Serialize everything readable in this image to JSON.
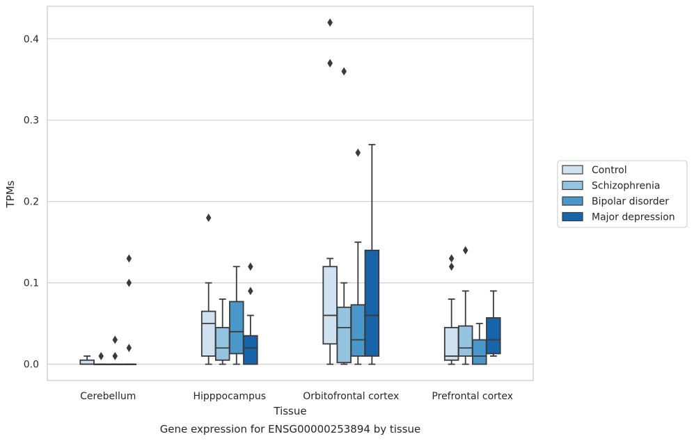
{
  "chart_data": {
    "type": "box",
    "xlabel": "Tissue",
    "ylabel": "TPMs",
    "caption": "Gene expression for ENSG00000253894 by tissue",
    "ylim": [
      -0.02,
      0.44
    ],
    "yticks": [
      0.0,
      0.1,
      0.2,
      0.3,
      0.4
    ],
    "ytick_labels": [
      "0.0",
      "0.1",
      "0.2",
      "0.3",
      "0.4"
    ],
    "grid": "horizontal",
    "legend_placement": "outside-right",
    "categories": [
      "Cerebellum",
      "Hipppocampus",
      "Orbitofrontal cortex",
      "Prefrontal cortex"
    ],
    "series": [
      {
        "name": "Control",
        "color": "#d0e1f2",
        "boxes": [
          {
            "whislo": 0.0,
            "q1": 0.0,
            "med": 0.0,
            "q3": 0.005,
            "whishi": 0.01,
            "fliers": []
          },
          {
            "whislo": 0.0,
            "q1": 0.01,
            "med": 0.05,
            "q3": 0.065,
            "whishi": 0.1,
            "fliers": [
              0.18
            ]
          },
          {
            "whislo": 0.0,
            "q1": 0.025,
            "med": 0.06,
            "q3": 0.12,
            "whishi": 0.13,
            "fliers": [
              0.37,
              0.37,
              0.42
            ]
          },
          {
            "whislo": 0.0,
            "q1": 0.005,
            "med": 0.01,
            "q3": 0.045,
            "whishi": 0.08,
            "fliers": [
              0.12,
              0.13
            ]
          }
        ]
      },
      {
        "name": "Schizophrenia",
        "color": "#94c4df",
        "boxes": [
          {
            "whislo": 0.0,
            "q1": 0.0,
            "med": 0.0,
            "q3": 0.0,
            "whishi": 0.0,
            "fliers": [
              0.01
            ]
          },
          {
            "whislo": 0.0,
            "q1": 0.005,
            "med": 0.02,
            "q3": 0.045,
            "whishi": 0.08,
            "fliers": []
          },
          {
            "whislo": 0.0,
            "q1": 0.002,
            "med": 0.045,
            "q3": 0.07,
            "whishi": 0.1,
            "fliers": [
              0.36
            ]
          },
          {
            "whislo": 0.0,
            "q1": 0.01,
            "med": 0.02,
            "q3": 0.047,
            "whishi": 0.09,
            "fliers": [
              0.14
            ]
          }
        ]
      },
      {
        "name": "Bipolar disorder",
        "color": "#4a98c9",
        "boxes": [
          {
            "whislo": 0.0,
            "q1": 0.0,
            "med": 0.0,
            "q3": 0.0,
            "whishi": 0.0,
            "fliers": [
              0.01,
              0.03
            ]
          },
          {
            "whislo": 0.0,
            "q1": 0.013,
            "med": 0.04,
            "q3": 0.077,
            "whishi": 0.12,
            "fliers": []
          },
          {
            "whislo": 0.0,
            "q1": 0.01,
            "med": 0.03,
            "q3": 0.073,
            "whishi": 0.15,
            "fliers": [
              0.26
            ]
          },
          {
            "whislo": 0.0,
            "q1": 0.0,
            "med": 0.01,
            "q3": 0.03,
            "whishi": 0.05,
            "fliers": []
          }
        ]
      },
      {
        "name": "Major depression",
        "color": "#1764ab",
        "boxes": [
          {
            "whislo": 0.0,
            "q1": 0.0,
            "med": 0.0,
            "q3": 0.0,
            "whishi": 0.0,
            "fliers": [
              0.02,
              0.1,
              0.13
            ]
          },
          {
            "whislo": 0.0,
            "q1": 0.0,
            "med": 0.02,
            "q3": 0.035,
            "whishi": 0.06,
            "fliers": [
              0.09,
              0.12
            ]
          },
          {
            "whislo": 0.0,
            "q1": 0.01,
            "med": 0.06,
            "q3": 0.14,
            "whishi": 0.27,
            "fliers": []
          },
          {
            "whislo": 0.01,
            "q1": 0.013,
            "med": 0.03,
            "q3": 0.057,
            "whishi": 0.09,
            "fliers": []
          }
        ]
      }
    ]
  }
}
